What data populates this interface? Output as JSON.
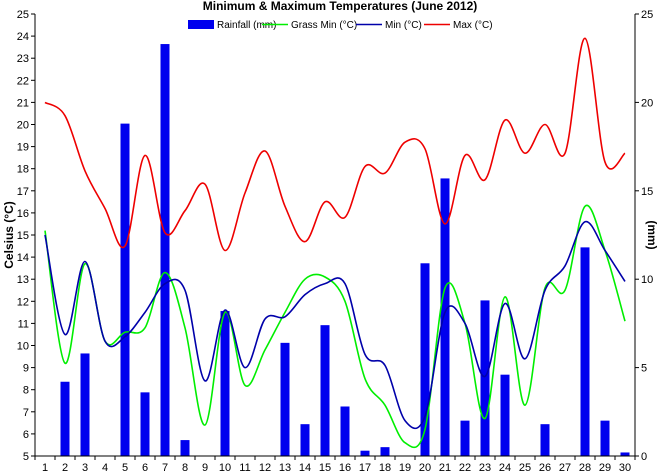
{
  "chart_data": {
    "type": "bar-line-combo",
    "title": "Minimum & Maximum Temperatures (June 2012)",
    "ylabel_left": "Celsius (°C)",
    "ylabel_right": "(mm)",
    "ylim_left": [
      5,
      25
    ],
    "ylim_right": [
      0,
      25
    ],
    "x": [
      1,
      2,
      3,
      4,
      5,
      6,
      7,
      8,
      9,
      10,
      11,
      12,
      13,
      14,
      15,
      16,
      17,
      18,
      19,
      20,
      21,
      22,
      23,
      24,
      25,
      26,
      27,
      28,
      29,
      30
    ],
    "x_tick_labels": [
      "1",
      "2",
      "3",
      "4",
      "5",
      "6",
      "7",
      "8",
      "9",
      "10",
      "11",
      "12",
      "13",
      "14",
      "15",
      "16",
      "17",
      "18",
      "19",
      "20",
      "21",
      "22",
      "23",
      "24",
      "25",
      "26",
      "27",
      "28",
      "29",
      "30"
    ],
    "y_left_tick_labels": [
      "5",
      "6",
      "7",
      "8",
      "9",
      "10",
      "11",
      "12",
      "13",
      "14",
      "15",
      "16",
      "17",
      "18",
      "19",
      "20",
      "21",
      "22",
      "23",
      "24",
      "25"
    ],
    "y_right_tick_labels": [
      "0",
      "5",
      "10",
      "15",
      "20",
      "25"
    ],
    "grid": false,
    "legend_placement": "top",
    "series": [
      {
        "name": "Rainfall (mm)",
        "axis": "right",
        "kind": "bar",
        "color": "#0000ee",
        "values": [
          0,
          4.2,
          5.8,
          0,
          18.8,
          3.6,
          23.3,
          0.9,
          0,
          8.2,
          0,
          0,
          6.4,
          1.8,
          7.4,
          2.8,
          0.3,
          0.5,
          0,
          10.9,
          15.7,
          2,
          8.8,
          4.6,
          0,
          1.8,
          0,
          11.8,
          2,
          0.2
        ]
      },
      {
        "name": "Grass Min (°C)",
        "axis": "left",
        "kind": "line",
        "color": "#00ee00",
        "values": [
          15.2,
          9.2,
          13.7,
          10.2,
          10.6,
          10.8,
          13.3,
          10.8,
          6.4,
          11.5,
          8.2,
          9.8,
          11.5,
          13,
          13.1,
          12,
          8.5,
          7.3,
          5.6,
          6.2,
          12.6,
          11,
          6.7,
          12.2,
          7.3,
          12.6,
          12.5,
          16.3,
          14.3,
          11.1
        ]
      },
      {
        "name": "Min (°C)",
        "axis": "left",
        "kind": "line",
        "color": "#0000aa",
        "values": [
          15,
          10.5,
          13.8,
          10.2,
          10.4,
          11.5,
          12.8,
          12.5,
          8.4,
          11.6,
          9,
          11.2,
          11.3,
          12.3,
          12.8,
          12.8,
          9.6,
          9.1,
          6.6,
          6.8,
          11.5,
          11,
          8.6,
          11.9,
          9.4,
          12.5,
          13.6,
          15.6,
          14.3,
          12.9
        ]
      },
      {
        "name": "Max (°C)",
        "axis": "left",
        "kind": "line",
        "color": "#ee0000",
        "values": [
          21,
          20.4,
          17.9,
          16.2,
          14.5,
          18.6,
          15.1,
          16.1,
          17.3,
          14.3,
          16.9,
          18.8,
          16.3,
          14.7,
          16.5,
          15.8,
          18.1,
          17.8,
          19.2,
          18.9,
          15.5,
          18.6,
          17.5,
          20.2,
          18.7,
          20,
          18.7,
          23.9,
          18.3,
          18.7
        ]
      }
    ]
  }
}
